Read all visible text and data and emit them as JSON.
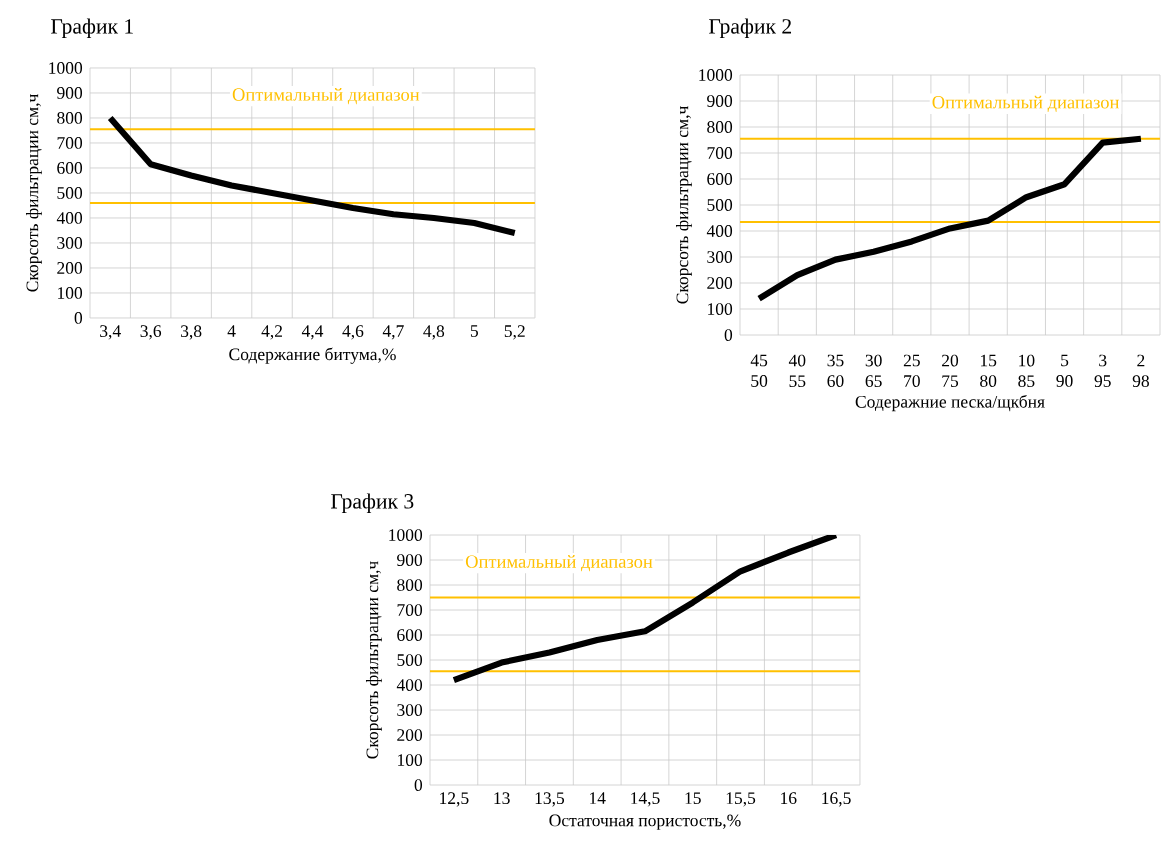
{
  "chart_data": [
    {
      "type": "line",
      "title": "График 1",
      "xlabel": "Содержание битума,%",
      "ylabel": "Скорсоть фильтрации см,ч",
      "categories": [
        "3,4",
        "3,6",
        "3,8",
        "4",
        "4,2",
        "4,4",
        "4,6",
        "4,7",
        "4,8",
        "5",
        "5,2"
      ],
      "series": [
        {
          "color": "#000000",
          "values": [
            800,
            615,
            570,
            530,
            500,
            470,
            440,
            415,
            400,
            380,
            340
          ]
        }
      ],
      "ylim": [
        0,
        1000
      ],
      "yticks": [
        0,
        100,
        200,
        300,
        400,
        500,
        600,
        700,
        800,
        900,
        1000
      ],
      "grid": true,
      "marker": "none",
      "line_style": "solid",
      "ref_lines": [
        {
          "axis": "y",
          "value": 755,
          "color": "#ffc000"
        },
        {
          "axis": "y",
          "value": 460,
          "color": "#ffc000"
        }
      ],
      "annotations": [
        "Оптимальный диапазон"
      ]
    },
    {
      "type": "line",
      "title": "График 2",
      "xlabel": "Содеражние песка/щкбня",
      "ylabel": "Скорсоть фильтрации см,ч",
      "categories": [
        "45 50",
        "40 55",
        "35 60",
        "30 65",
        "25 70",
        "20 75",
        "15 80",
        "10 85",
        "5 90",
        "3 95",
        "2 98"
      ],
      "series": [
        {
          "color": "#000000",
          "values": [
            140,
            230,
            290,
            320,
            360,
            410,
            440,
            530,
            580,
            740,
            755
          ]
        }
      ],
      "ylim": [
        0,
        1000
      ],
      "yticks": [
        0,
        100,
        200,
        300,
        400,
        500,
        600,
        700,
        800,
        900,
        1000
      ],
      "grid": true,
      "marker": "none",
      "line_style": "solid",
      "ref_lines": [
        {
          "axis": "y",
          "value": 755,
          "color": "#ffc000"
        },
        {
          "axis": "y",
          "value": 435,
          "color": "#ffc000"
        }
      ],
      "annotations": [
        "Оптимальный диапазон"
      ]
    },
    {
      "type": "line",
      "title": "График 3",
      "xlabel": "Остаточная пористость,%",
      "ylabel": "Скорсоть фильтрации см,ч",
      "categories": [
        "12,5",
        "13",
        "13,5",
        "14",
        "14,5",
        "15",
        "15,5",
        "16",
        "16,5"
      ],
      "series": [
        {
          "color": "#000000",
          "values": [
            420,
            490,
            530,
            580,
            615,
            730,
            855,
            930,
            1000
          ]
        }
      ],
      "ylim": [
        0,
        1000
      ],
      "yticks": [
        0,
        100,
        200,
        300,
        400,
        500,
        600,
        700,
        800,
        900,
        1000
      ],
      "grid": true,
      "marker": "none",
      "line_style": "solid",
      "ref_lines": [
        {
          "axis": "y",
          "value": 750,
          "color": "#ffc000"
        },
        {
          "axis": "y",
          "value": 455,
          "color": "#ffc000"
        }
      ],
      "annotations": [
        "Оптимальный диапазон"
      ]
    }
  ]
}
